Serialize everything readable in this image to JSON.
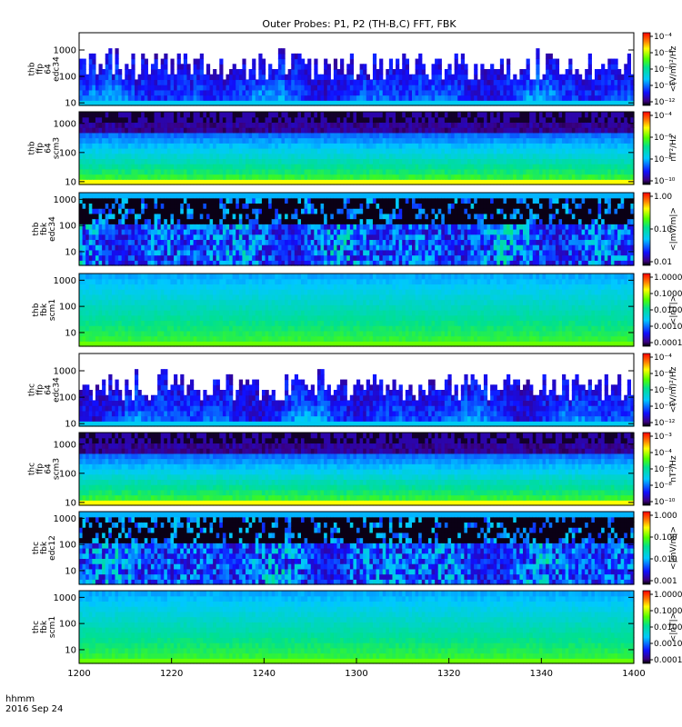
{
  "chart_data": {
    "type": "heatmap",
    "title": "Outer Probes: P1, P2 (TH-B,C) FFT, FBK",
    "x_axis": {
      "range": [
        1200,
        1400
      ],
      "tick_labels": [
        "1200",
        "1220",
        "1240",
        "1300",
        "1320",
        "1340",
        "1400"
      ],
      "tick_values": [
        0,
        20,
        40,
        60,
        80,
        100,
        120
      ]
    },
    "footer": {
      "line1": "hhmm",
      "line2": "2016 Sep 24"
    },
    "panels": [
      {
        "ylabel": [
          "thb",
          "ffp",
          "64",
          "edc34"
        ],
        "y_scale": "log",
        "y_range": [
          8,
          4500
        ],
        "y_ticks": [
          "10",
          "100",
          "1000"
        ],
        "cbar_title": "<(V/m)²/Hz",
        "cbar_ticks": [
          "10⁻⁴",
          "10⁻⁶",
          "10⁻⁸",
          "10⁻¹⁰",
          "10⁻¹²"
        ],
        "pattern": "efield"
      },
      {
        "ylabel": [
          "thb",
          "ffp",
          "64",
          "scm3"
        ],
        "y_scale": "log",
        "y_range": [
          8,
          2500
        ],
        "y_ticks": [
          "10",
          "100",
          "1000"
        ],
        "cbar_title": "nT²/Hz",
        "cbar_ticks": [
          "10⁻⁴",
          "10⁻⁶",
          "10⁻⁸",
          "10⁻¹⁰"
        ],
        "pattern": "scm_ffp"
      },
      {
        "ylabel": [
          "thb",
          "fbk",
          "edc34"
        ],
        "y_scale": "log",
        "y_range": [
          3,
          1800
        ],
        "y_ticks": [
          "10",
          "100",
          "1000"
        ],
        "cbar_title": "<|mV/m|>",
        "cbar_ticks": [
          "1.00",
          "0.10",
          "0.01"
        ],
        "pattern": "fbk_edc"
      },
      {
        "ylabel": [
          "thb",
          "fbk",
          "scm1"
        ],
        "y_scale": "log",
        "y_range": [
          3,
          1800
        ],
        "y_ticks": [
          "10",
          "100",
          "1000"
        ],
        "cbar_title": "<|nT|>",
        "cbar_ticks": [
          "1.0000",
          "0.1000",
          "0.0100",
          "0.0010",
          "0.0001"
        ],
        "pattern": "fbk_scm"
      },
      {
        "ylabel": [
          "thc",
          "ffp",
          "64",
          "edc34"
        ],
        "y_scale": "log",
        "y_range": [
          8,
          4500
        ],
        "y_ticks": [
          "10",
          "100",
          "1000"
        ],
        "cbar_title": "<(V/m)²/Hz",
        "cbar_ticks": [
          "10⁻⁴",
          "10⁻⁶",
          "10⁻⁸",
          "10⁻¹⁰",
          "10⁻¹²"
        ],
        "pattern": "efield"
      },
      {
        "ylabel": [
          "thc",
          "ffp",
          "64",
          "scm3"
        ],
        "y_scale": "log",
        "y_range": [
          8,
          2500
        ],
        "y_ticks": [
          "10",
          "100",
          "1000"
        ],
        "cbar_title": "nT²/Hz",
        "cbar_ticks": [
          "10⁻³",
          "10⁻⁴",
          "10⁻⁶",
          "10⁻⁸",
          "10⁻¹⁰"
        ],
        "pattern": "scm_ffp"
      },
      {
        "ylabel": [
          "thc",
          "fbk",
          "edc12"
        ],
        "y_scale": "log",
        "y_range": [
          3,
          1800
        ],
        "y_ticks": [
          "10",
          "100",
          "1000"
        ],
        "cbar_title": "<|mV/m|>",
        "cbar_ticks": [
          "1.000",
          "0.100",
          "0.010",
          "0.001"
        ],
        "pattern": "fbk_edc"
      },
      {
        "ylabel": [
          "thc",
          "fbk",
          "scm1"
        ],
        "y_scale": "log",
        "y_range": [
          3,
          1800
        ],
        "y_ticks": [
          "10",
          "100",
          "1000"
        ],
        "cbar_title": "<|nT|>",
        "cbar_ticks": [
          "1.0000",
          "0.1000",
          "0.0100",
          "0.0010",
          "0.0001"
        ],
        "pattern": "fbk_scm"
      }
    ]
  }
}
